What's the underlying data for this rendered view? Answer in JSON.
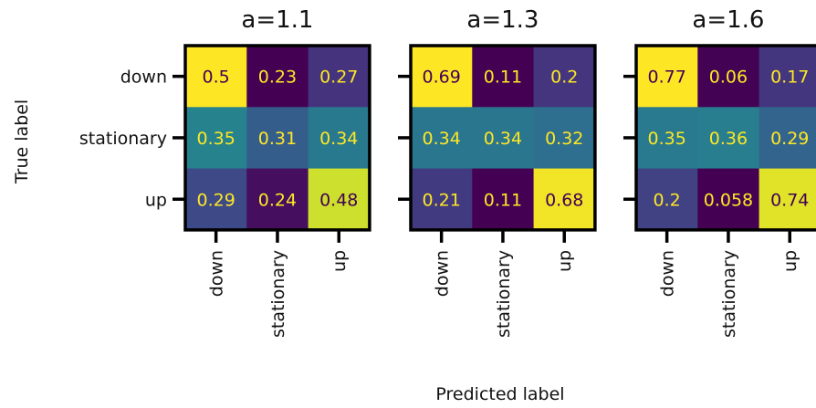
{
  "figure": {
    "ylabel": "True label",
    "xlabel": "Predicted label"
  },
  "chart_data": [
    {
      "type": "heatmap",
      "title": "a=1.1",
      "ylabel": "True label",
      "xlabel": "Predicted label",
      "row_labels": [
        "down",
        "stationary",
        "up"
      ],
      "col_labels": [
        "down",
        "stationary",
        "up"
      ],
      "cell_labels": [
        [
          "0.5",
          "0.23",
          "0.27"
        ],
        [
          "0.35",
          "0.31",
          "0.34"
        ],
        [
          "0.29",
          "0.24",
          "0.48"
        ]
      ],
      "values": [
        [
          0.5,
          0.23,
          0.27
        ],
        [
          0.35,
          0.31,
          0.34
        ],
        [
          0.29,
          0.24,
          0.48
        ]
      ],
      "colormap": "viridis"
    },
    {
      "type": "heatmap",
      "title": "a=1.3",
      "ylabel": "",
      "xlabel": "Predicted label",
      "row_labels": [
        "down",
        "stationary",
        "up"
      ],
      "col_labels": [
        "down",
        "stationary",
        "up"
      ],
      "cell_labels": [
        [
          "0.69",
          "0.11",
          "0.2"
        ],
        [
          "0.34",
          "0.34",
          "0.32"
        ],
        [
          "0.21",
          "0.11",
          "0.68"
        ]
      ],
      "values": [
        [
          0.69,
          0.11,
          0.2
        ],
        [
          0.34,
          0.34,
          0.32
        ],
        [
          0.21,
          0.11,
          0.68
        ]
      ],
      "colormap": "viridis"
    },
    {
      "type": "heatmap",
      "title": "a=1.6",
      "ylabel": "",
      "xlabel": "Predicted label",
      "row_labels": [
        "down",
        "stationary",
        "up"
      ],
      "col_labels": [
        "down",
        "stationary",
        "up"
      ],
      "cell_labels": [
        [
          "0.77",
          "0.06",
          "0.17"
        ],
        [
          "0.35",
          "0.36",
          "0.29"
        ],
        [
          "0.2",
          "0.058",
          "0.74"
        ]
      ],
      "values": [
        [
          0.77,
          0.06,
          0.17
        ],
        [
          0.35,
          0.36,
          0.29
        ],
        [
          0.2,
          0.058,
          0.74
        ]
      ],
      "colormap": "viridis"
    }
  ]
}
